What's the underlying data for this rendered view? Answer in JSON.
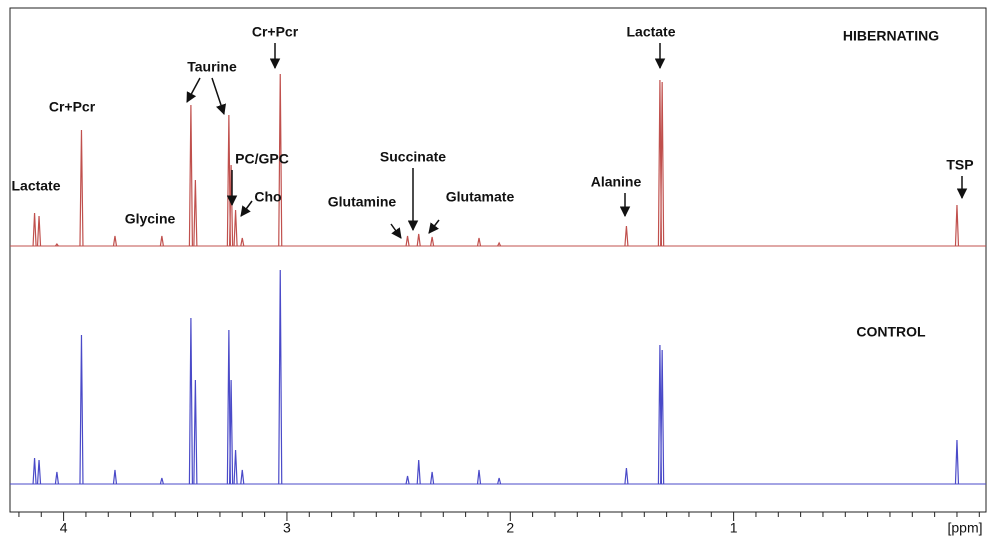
{
  "chart_data": {
    "type": "spectrum",
    "xlabel": "[ppm]",
    "xlim": [
      4.24,
      -0.13
    ],
    "ylim": [
      0,
      220
    ],
    "xticks": [
      4,
      3,
      2,
      1
    ],
    "xminorticks": [
      4.2,
      4.1,
      3.9,
      3.8,
      3.7,
      3.6,
      3.5,
      3.4,
      3.3,
      3.2,
      3.1,
      2.9,
      2.8,
      2.7,
      2.6,
      2.5,
      2.4,
      2.3,
      2.2,
      2.1,
      1.9,
      1.8,
      1.7,
      1.6,
      1.5,
      1.4,
      1.3,
      1.2,
      1.1,
      0.9,
      0.8,
      0.7,
      0.6,
      0.5,
      0.4,
      0.3,
      0.2,
      0.1,
      0,
      -0.1
    ],
    "series": [
      {
        "name": "HIBERNATING",
        "color": "#c0504d",
        "x": [
          4.13,
          4.11,
          4.03,
          3.92,
          3.77,
          3.56,
          3.43,
          3.41,
          3.26,
          3.25,
          3.23,
          3.2,
          3.03,
          2.46,
          2.41,
          2.35,
          2.14,
          2.05,
          1.48,
          1.33,
          1.32,
          0.0
        ],
        "values": [
          33,
          30,
          2,
          116,
          10,
          10,
          141,
          66,
          131,
          81,
          36,
          8,
          172,
          10,
          12,
          9,
          8,
          3,
          20,
          166,
          164,
          41
        ]
      },
      {
        "name": "CONTROL",
        "color": "#4a4ac8",
        "x": [
          4.13,
          4.11,
          4.03,
          3.92,
          3.77,
          3.56,
          3.43,
          3.41,
          3.26,
          3.25,
          3.23,
          3.2,
          3.03,
          2.46,
          2.41,
          2.35,
          2.14,
          2.05,
          1.48,
          1.33,
          1.32,
          0.0
        ],
        "values": [
          26,
          24,
          12,
          149,
          14,
          6,
          166,
          104,
          154,
          104,
          34,
          14,
          214,
          8,
          24,
          12,
          14,
          6,
          16,
          139,
          134,
          44
        ]
      }
    ],
    "annotations": [
      "Lactate",
      "Cr+Pcr",
      "Glycine",
      "Taurine",
      "Cr+Pcr",
      "PC/GPC",
      "Cho",
      "Glutamine",
      "Succinate",
      "Glutamate",
      "Alanine",
      "Lactate",
      "TSP"
    ]
  }
}
